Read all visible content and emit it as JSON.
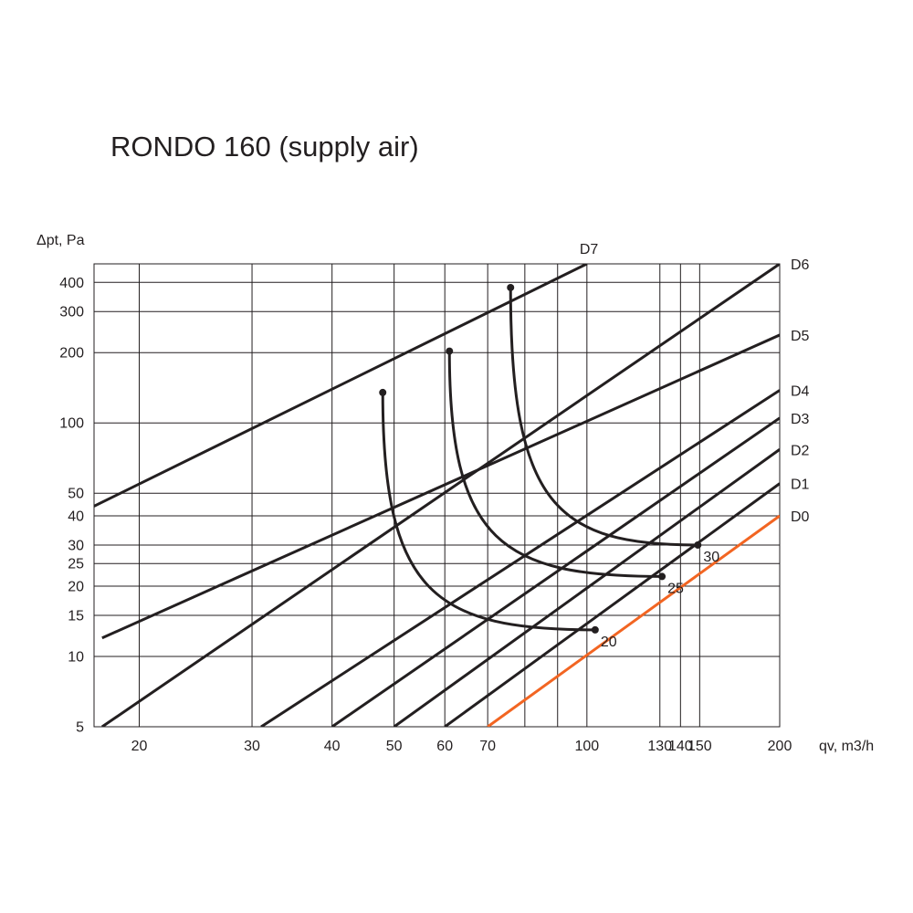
{
  "chart_data": {
    "type": "line",
    "title": "RONDO 160 (supply air)",
    "xlabel": "qv, m3/h",
    "ylabel": "Δpt, Pa",
    "x_scale": "log",
    "y_scale": "log",
    "grid": true,
    "xlim": [
      17,
      200
    ],
    "ylim": [
      5,
      480
    ],
    "x_ticks": [
      20,
      30,
      40,
      50,
      60,
      70,
      100,
      130,
      140,
      150,
      200
    ],
    "x_gridlines": [
      20,
      30,
      40,
      50,
      60,
      70,
      80,
      90,
      100,
      130,
      140,
      150
    ],
    "y_ticks": [
      5,
      10,
      15,
      20,
      25,
      30,
      40,
      50,
      100,
      200,
      300,
      400
    ],
    "series": [
      {
        "name": "D0",
        "color": "#f26522",
        "x": [
          70,
          200
        ],
        "y": [
          5,
          40
        ]
      },
      {
        "name": "D1",
        "color": "#231f20",
        "x": [
          60,
          200
        ],
        "y": [
          5,
          55
        ]
      },
      {
        "name": "D2",
        "color": "#231f20",
        "x": [
          50,
          200
        ],
        "y": [
          5,
          77
        ]
      },
      {
        "name": "D3",
        "color": "#231f20",
        "x": [
          40,
          200
        ],
        "y": [
          5,
          105
        ]
      },
      {
        "name": "D4",
        "color": "#231f20",
        "x": [
          31,
          200
        ],
        "y": [
          5,
          138
        ]
      },
      {
        "name": "D5",
        "color": "#231f20",
        "x": [
          17.5,
          200
        ],
        "y": [
          12,
          238
        ]
      },
      {
        "name": "D6",
        "color": "#231f20",
        "x": [
          17.5,
          200
        ],
        "y": [
          5,
          480
        ]
      },
      {
        "name": "D7",
        "color": "#231f20",
        "x": [
          17,
          100
        ],
        "y": [
          44,
          480
        ]
      }
    ],
    "noise_curves": [
      {
        "label": "20",
        "start": {
          "x": 48,
          "y": 135
        },
        "end": {
          "x": 103,
          "y": 13
        }
      },
      {
        "label": "25",
        "start": {
          "x": 61,
          "y": 203
        },
        "end": {
          "x": 131,
          "y": 22
        }
      },
      {
        "label": "30",
        "start": {
          "x": 76,
          "y": 380
        },
        "end": {
          "x": 149,
          "y": 30
        }
      }
    ]
  }
}
